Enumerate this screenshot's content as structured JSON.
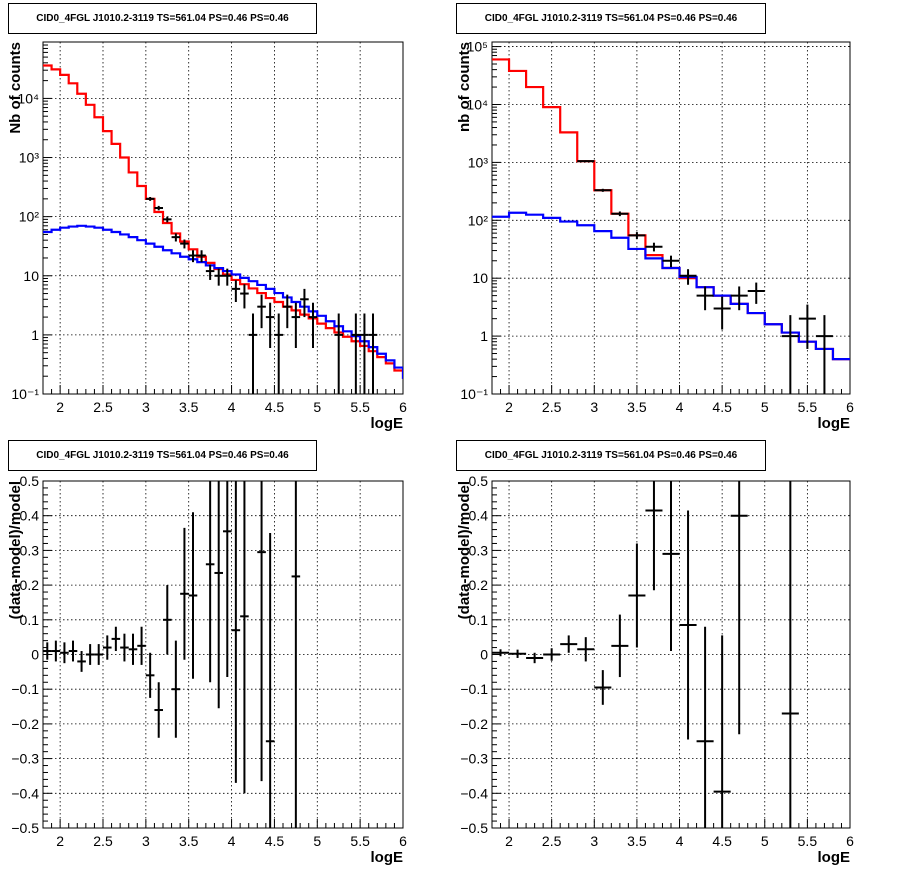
{
  "chart_data": [
    {
      "type": "line",
      "title": "CID0_4FGL J1010.2-3119 TS=561.04 PS=0.46 PS=0.46",
      "xlabel": "logE",
      "ylabel": "Nb of counts",
      "xlim": [
        1.8,
        6.0
      ],
      "ylim": [
        0.1,
        90000
      ],
      "yscale": "log",
      "xticks": [
        2,
        2.5,
        3,
        3.5,
        4,
        4.5,
        5,
        5.5,
        6
      ],
      "xtick_labels": [
        "2",
        "2.5",
        "3",
        "3.5",
        "4",
        "4.5",
        "5",
        "5.5",
        "6"
      ],
      "yticks": [
        0.1,
        1,
        10,
        100,
        1000,
        10000
      ],
      "ytick_labels": [
        "10⁻¹",
        "1",
        "10",
        "10²",
        "10³",
        "10⁴"
      ],
      "grid": true,
      "series": [
        {
          "color": "#ff0000",
          "kind": "step",
          "edges": [
            1.8,
            1.9,
            2.0,
            2.1,
            2.2,
            2.3,
            2.4,
            2.5,
            2.6,
            2.7,
            2.8,
            2.9,
            3.0,
            3.1,
            3.2,
            3.3,
            3.4,
            3.5,
            3.6,
            3.7,
            3.8,
            3.9,
            4.0,
            4.1,
            4.2,
            4.3,
            4.4,
            4.5,
            4.6,
            4.7,
            4.8,
            4.9,
            5.0,
            5.1,
            5.2,
            5.3,
            5.4,
            5.5,
            5.6,
            5.7,
            5.8,
            5.9,
            6.0
          ],
          "values": [
            36000,
            31000,
            25000,
            18000,
            12000,
            7800,
            4800,
            2800,
            1700,
            1000,
            560,
            330,
            200,
            120,
            78,
            52,
            38,
            28,
            21,
            16.5,
            13,
            10.5,
            8.5,
            7.2,
            6.1,
            5.1,
            4.2,
            3.6,
            3.0,
            2.6,
            2.2,
            1.9,
            1.55,
            1.3,
            1.1,
            0.93,
            0.78,
            0.65,
            0.53,
            0.42,
            0.33,
            0.25,
            0.18
          ]
        },
        {
          "color": "#0000ff",
          "kind": "step",
          "edges": [
            1.8,
            1.9,
            2.0,
            2.1,
            2.2,
            2.3,
            2.4,
            2.5,
            2.6,
            2.7,
            2.8,
            2.9,
            3.0,
            3.1,
            3.2,
            3.3,
            3.4,
            3.5,
            3.6,
            3.7,
            3.8,
            3.9,
            4.0,
            4.1,
            4.2,
            4.3,
            4.4,
            4.5,
            4.6,
            4.7,
            4.8,
            4.9,
            5.0,
            5.1,
            5.2,
            5.3,
            5.4,
            5.5,
            5.6,
            5.7,
            5.8,
            5.9,
            6.0
          ],
          "values": [
            55,
            60,
            65,
            68,
            70,
            68,
            65,
            60,
            55,
            50,
            45,
            40,
            35,
            31,
            27,
            24,
            21,
            19,
            17,
            15,
            13.5,
            12,
            10.5,
            9.2,
            8.1,
            7.0,
            6.0,
            5.1,
            4.3,
            3.6,
            3.0,
            2.5,
            2.1,
            1.7,
            1.4,
            1.15,
            0.95,
            0.78,
            0.62,
            0.48,
            0.37,
            0.28,
            0.18
          ]
        }
      ],
      "points": [
        {
          "x": 3.05,
          "y": 200,
          "xerr": 0.05,
          "yerr_lo": 15,
          "yerr_hi": 15
        },
        {
          "x": 3.15,
          "y": 140,
          "xerr": 0.05,
          "yerr_lo": 12,
          "yerr_hi": 12
        },
        {
          "x": 3.25,
          "y": 90,
          "xerr": 0.05,
          "yerr_lo": 10,
          "yerr_hi": 10
        },
        {
          "x": 3.35,
          "y": 45,
          "xerr": 0.05,
          "yerr_lo": 7,
          "yerr_hi": 7
        },
        {
          "x": 3.45,
          "y": 35,
          "xerr": 0.05,
          "yerr_lo": 6,
          "yerr_hi": 6
        },
        {
          "x": 3.55,
          "y": 22,
          "xerr": 0.05,
          "yerr_lo": 5,
          "yerr_hi": 5
        },
        {
          "x": 3.65,
          "y": 22,
          "xerr": 0.05,
          "yerr_lo": 5,
          "yerr_hi": 5
        },
        {
          "x": 3.75,
          "y": 12,
          "xerr": 0.05,
          "yerr_lo": 3.5,
          "yerr_hi": 3.5
        },
        {
          "x": 3.85,
          "y": 10,
          "xerr": 0.05,
          "yerr_lo": 3.2,
          "yerr_hi": 3.2
        },
        {
          "x": 3.95,
          "y": 10,
          "xerr": 0.05,
          "yerr_lo": 3.2,
          "yerr_hi": 3.2
        },
        {
          "x": 4.05,
          "y": 6,
          "xerr": 0.05,
          "yerr_lo": 2.4,
          "yerr_hi": 2.4
        },
        {
          "x": 4.15,
          "y": 5,
          "xerr": 0.05,
          "yerr_lo": 2.2,
          "yerr_hi": 2.2
        },
        {
          "x": 4.25,
          "y": 1,
          "xerr": 0.05,
          "yerr_lo": 0.9,
          "yerr_hi": 1.3
        },
        {
          "x": 4.35,
          "y": 3,
          "xerr": 0.05,
          "yerr_lo": 1.7,
          "yerr_hi": 1.8
        },
        {
          "x": 4.45,
          "y": 2,
          "xerr": 0.05,
          "yerr_lo": 1.4,
          "yerr_hi": 1.5
        },
        {
          "x": 4.55,
          "y": 1,
          "xerr": 0.05,
          "yerr_lo": 0.9,
          "yerr_hi": 1.3
        },
        {
          "x": 4.65,
          "y": 3,
          "xerr": 0.05,
          "yerr_lo": 1.7,
          "yerr_hi": 1.8
        },
        {
          "x": 4.75,
          "y": 2,
          "xerr": 0.05,
          "yerr_lo": 1.4,
          "yerr_hi": 1.5
        },
        {
          "x": 4.85,
          "y": 4,
          "xerr": 0.05,
          "yerr_lo": 2,
          "yerr_hi": 2
        },
        {
          "x": 4.95,
          "y": 2,
          "xerr": 0.05,
          "yerr_lo": 1.4,
          "yerr_hi": 1.5
        },
        {
          "x": 5.25,
          "y": 1,
          "xerr": 0.05,
          "yerr_lo": 0.9,
          "yerr_hi": 1.3
        },
        {
          "x": 5.45,
          "y": 1,
          "xerr": 0.05,
          "yerr_lo": 0.9,
          "yerr_hi": 1.3
        },
        {
          "x": 5.55,
          "y": 1,
          "xerr": 0.05,
          "yerr_lo": 0.9,
          "yerr_hi": 1.3
        },
        {
          "x": 5.65,
          "y": 1,
          "xerr": 0.05,
          "yerr_lo": 0.9,
          "yerr_hi": 1.3
        }
      ]
    },
    {
      "type": "line",
      "title": "CID0_4FGL J1010.2-3119 TS=561.04 PS=0.46 PS=0.46",
      "xlabel": "logE",
      "ylabel": "nb of counts",
      "xlim": [
        1.8,
        6.0
      ],
      "ylim": [
        0.1,
        120000
      ],
      "yscale": "log",
      "xticks": [
        2,
        2.5,
        3,
        3.5,
        4,
        4.5,
        5,
        5.5,
        6
      ],
      "xtick_labels": [
        "2",
        "2.5",
        "3",
        "3.5",
        "4",
        "4.5",
        "5",
        "5.5",
        "6"
      ],
      "yticks": [
        0.1,
        1,
        10,
        100,
        1000,
        10000,
        100000
      ],
      "ytick_labels": [
        "10⁻¹",
        "1",
        "10",
        "10²",
        "10³",
        "10⁴",
        "10⁵"
      ],
      "grid": true,
      "series": [
        {
          "color": "#ff0000",
          "kind": "step",
          "edges": [
            1.8,
            2.0,
            2.2,
            2.4,
            2.6,
            2.8,
            3.0,
            3.2,
            3.4,
            3.6,
            3.8,
            4.0,
            4.2,
            4.4,
            4.6,
            4.8,
            5.0,
            5.2,
            5.4,
            5.6,
            5.8,
            6.0
          ],
          "values": [
            60000,
            38000,
            20000,
            9000,
            3300,
            1050,
            330,
            130,
            55,
            25,
            15,
            10,
            7,
            5,
            3.6,
            2.5,
            1.6,
            1.15,
            0.8,
            0.6,
            0.4
          ]
        },
        {
          "color": "#0000ff",
          "kind": "step",
          "edges": [
            1.8,
            2.0,
            2.2,
            2.4,
            2.6,
            2.8,
            3.0,
            3.2,
            3.4,
            3.6,
            3.8,
            4.0,
            4.2,
            4.4,
            4.6,
            4.8,
            5.0,
            5.2,
            5.4,
            5.6,
            5.8,
            6.0
          ],
          "values": [
            115,
            135,
            125,
            110,
            95,
            82,
            65,
            50,
            32,
            22,
            15,
            10.5,
            7,
            5,
            3.6,
            2.5,
            1.6,
            1.15,
            0.8,
            0.6,
            0.4
          ]
        }
      ],
      "points": [
        {
          "x": 2.9,
          "y": 1050,
          "xerr": 0.1,
          "yerr_lo": 35,
          "yerr_hi": 35
        },
        {
          "x": 3.1,
          "y": 330,
          "xerr": 0.1,
          "yerr_lo": 20,
          "yerr_hi": 20
        },
        {
          "x": 3.3,
          "y": 130,
          "xerr": 0.1,
          "yerr_lo": 12,
          "yerr_hi": 12
        },
        {
          "x": 3.5,
          "y": 55,
          "xerr": 0.1,
          "yerr_lo": 7.5,
          "yerr_hi": 7.5
        },
        {
          "x": 3.7,
          "y": 35,
          "xerr": 0.1,
          "yerr_lo": 6,
          "yerr_hi": 6
        },
        {
          "x": 3.9,
          "y": 20,
          "xerr": 0.1,
          "yerr_lo": 4.5,
          "yerr_hi": 4.5
        },
        {
          "x": 4.1,
          "y": 11,
          "xerr": 0.1,
          "yerr_lo": 3.3,
          "yerr_hi": 3.3
        },
        {
          "x": 4.3,
          "y": 5,
          "xerr": 0.1,
          "yerr_lo": 2.2,
          "yerr_hi": 2.2
        },
        {
          "x": 4.5,
          "y": 3,
          "xerr": 0.1,
          "yerr_lo": 1.7,
          "yerr_hi": 1.8
        },
        {
          "x": 4.7,
          "y": 5,
          "xerr": 0.1,
          "yerr_lo": 2.2,
          "yerr_hi": 2.2
        },
        {
          "x": 4.9,
          "y": 6,
          "xerr": 0.1,
          "yerr_lo": 2.4,
          "yerr_hi": 2.4
        },
        {
          "x": 5.3,
          "y": 1,
          "xerr": 0.1,
          "yerr_lo": 0.9,
          "yerr_hi": 1.3
        },
        {
          "x": 5.5,
          "y": 2,
          "xerr": 0.1,
          "yerr_lo": 1.4,
          "yerr_hi": 1.5
        },
        {
          "x": 5.7,
          "y": 1,
          "xerr": 0.1,
          "yerr_lo": 0.9,
          "yerr_hi": 1.3
        }
      ]
    },
    {
      "type": "scatter",
      "title": "CID0_4FGL J1010.2-3119 TS=561.04 PS=0.46 PS=0.46",
      "xlabel": "logE",
      "ylabel": "(data-model)/model",
      "xlim": [
        1.8,
        6.0
      ],
      "ylim": [
        -0.5,
        0.5
      ],
      "yscale": "linear",
      "xticks": [
        2,
        2.5,
        3,
        3.5,
        4,
        4.5,
        5,
        5.5,
        6
      ],
      "xtick_labels": [
        "2",
        "2.5",
        "3",
        "3.5",
        "4",
        "4.5",
        "5",
        "5.5",
        "6"
      ],
      "yticks": [
        -0.5,
        -0.4,
        -0.3,
        -0.2,
        -0.1,
        0,
        0.1,
        0.2,
        0.3,
        0.4,
        0.5
      ],
      "ytick_labels": [
        "−0.5",
        "−0.4",
        "−0.3",
        "−0.2",
        "−0.1",
        "0",
        "0.1",
        "0.2",
        "0.3",
        "0.4",
        "0.5"
      ],
      "grid": true,
      "points": [
        {
          "x": 1.85,
          "y": 0.01,
          "xerr": 0.05,
          "yerr_lo": 0.025,
          "yerr_hi": 0.025
        },
        {
          "x": 1.95,
          "y": 0.01,
          "xerr": 0.05,
          "yerr_lo": 0.03,
          "yerr_hi": 0.03
        },
        {
          "x": 2.05,
          "y": 0.005,
          "xerr": 0.05,
          "yerr_lo": 0.03,
          "yerr_hi": 0.03
        },
        {
          "x": 2.15,
          "y": 0.01,
          "xerr": 0.05,
          "yerr_lo": 0.03,
          "yerr_hi": 0.03
        },
        {
          "x": 2.25,
          "y": -0.02,
          "xerr": 0.05,
          "yerr_lo": 0.03,
          "yerr_hi": 0.03
        },
        {
          "x": 2.35,
          "y": 0.0,
          "xerr": 0.05,
          "yerr_lo": 0.03,
          "yerr_hi": 0.03
        },
        {
          "x": 2.45,
          "y": 0.0,
          "xerr": 0.05,
          "yerr_lo": 0.03,
          "yerr_hi": 0.03
        },
        {
          "x": 2.55,
          "y": 0.02,
          "xerr": 0.05,
          "yerr_lo": 0.035,
          "yerr_hi": 0.035
        },
        {
          "x": 2.65,
          "y": 0.045,
          "xerr": 0.05,
          "yerr_lo": 0.035,
          "yerr_hi": 0.035
        },
        {
          "x": 2.75,
          "y": 0.02,
          "xerr": 0.05,
          "yerr_lo": 0.04,
          "yerr_hi": 0.04
        },
        {
          "x": 2.85,
          "y": 0.015,
          "xerr": 0.05,
          "yerr_lo": 0.045,
          "yerr_hi": 0.045
        },
        {
          "x": 2.95,
          "y": 0.025,
          "xerr": 0.05,
          "yerr_lo": 0.055,
          "yerr_hi": 0.055
        },
        {
          "x": 3.05,
          "y": -0.06,
          "xerr": 0.05,
          "yerr_lo": 0.065,
          "yerr_hi": 0.065
        },
        {
          "x": 3.15,
          "y": -0.16,
          "xerr": 0.05,
          "yerr_lo": 0.08,
          "yerr_hi": 0.08
        },
        {
          "x": 3.25,
          "y": 0.1,
          "xerr": 0.05,
          "yerr_lo": 0.1,
          "yerr_hi": 0.1
        },
        {
          "x": 3.35,
          "y": -0.1,
          "xerr": 0.05,
          "yerr_lo": 0.14,
          "yerr_hi": 0.14
        },
        {
          "x": 3.45,
          "y": 0.175,
          "xerr": 0.05,
          "yerr_lo": 0.19,
          "yerr_hi": 0.19
        },
        {
          "x": 3.55,
          "y": 0.17,
          "xerr": 0.05,
          "yerr_lo": 0.24,
          "yerr_hi": 0.24
        },
        {
          "x": 3.75,
          "y": 0.26,
          "xerr": 0.05,
          "yerr_lo": 0.34,
          "yerr_hi": 0.34
        },
        {
          "x": 3.85,
          "y": 0.235,
          "xerr": 0.05,
          "yerr_lo": 0.39,
          "yerr_hi": 0.39
        },
        {
          "x": 3.95,
          "y": 0.355,
          "xerr": 0.05,
          "yerr_lo": 0.42,
          "yerr_hi": 0.42
        },
        {
          "x": 4.05,
          "y": 0.07,
          "xerr": 0.05,
          "yerr_lo": 0.44,
          "yerr_hi": 0.44
        },
        {
          "x": 4.15,
          "y": 0.11,
          "xerr": 0.05,
          "yerr_lo": 0.51,
          "yerr_hi": 0.51
        },
        {
          "x": 4.35,
          "y": 0.295,
          "xerr": 0.05,
          "yerr_lo": 0.66,
          "yerr_hi": 0.66
        },
        {
          "x": 4.45,
          "y": -0.25,
          "xerr": 0.05,
          "yerr_lo": 0.6,
          "yerr_hi": 0.6
        },
        {
          "x": 4.75,
          "y": 0.225,
          "xerr": 0.05,
          "yerr_lo": 0.9,
          "yerr_hi": 0.9
        }
      ]
    },
    {
      "type": "scatter",
      "title": "CID0_4FGL J1010.2-3119 TS=561.04 PS=0.46 PS=0.46",
      "xlabel": "logE",
      "ylabel": "(data-model)/model",
      "xlim": [
        1.8,
        6.0
      ],
      "ylim": [
        -0.5,
        0.5
      ],
      "yscale": "linear",
      "xticks": [
        2,
        2.5,
        3,
        3.5,
        4,
        4.5,
        5,
        5.5,
        6
      ],
      "xtick_labels": [
        "2",
        "2.5",
        "3",
        "3.5",
        "4",
        "4.5",
        "5",
        "5.5",
        "6"
      ],
      "yticks": [
        -0.5,
        -0.4,
        -0.3,
        -0.2,
        -0.1,
        0,
        0.1,
        0.2,
        0.3,
        0.4,
        0.5
      ],
      "ytick_labels": [
        "−0.5",
        "−0.4",
        "−0.3",
        "−0.2",
        "−0.1",
        "0",
        "0.1",
        "0.2",
        "0.3",
        "0.4",
        "0.5"
      ],
      "grid": true,
      "points": [
        {
          "x": 1.9,
          "y": 0.005,
          "xerr": 0.1,
          "yerr_lo": 0.01,
          "yerr_hi": 0.01
        },
        {
          "x": 2.1,
          "y": 0.002,
          "xerr": 0.1,
          "yerr_lo": 0.012,
          "yerr_hi": 0.012
        },
        {
          "x": 2.3,
          "y": -0.01,
          "xerr": 0.1,
          "yerr_lo": 0.015,
          "yerr_hi": 0.015
        },
        {
          "x": 2.5,
          "y": 0.0,
          "xerr": 0.1,
          "yerr_lo": 0.018,
          "yerr_hi": 0.018
        },
        {
          "x": 2.7,
          "y": 0.03,
          "xerr": 0.1,
          "yerr_lo": 0.025,
          "yerr_hi": 0.025
        },
        {
          "x": 2.9,
          "y": 0.015,
          "xerr": 0.1,
          "yerr_lo": 0.035,
          "yerr_hi": 0.035
        },
        {
          "x": 3.1,
          "y": -0.095,
          "xerr": 0.1,
          "yerr_lo": 0.05,
          "yerr_hi": 0.05
        },
        {
          "x": 3.3,
          "y": 0.025,
          "xerr": 0.1,
          "yerr_lo": 0.09,
          "yerr_hi": 0.09
        },
        {
          "x": 3.5,
          "y": 0.17,
          "xerr": 0.1,
          "yerr_lo": 0.15,
          "yerr_hi": 0.15
        },
        {
          "x": 3.7,
          "y": 0.415,
          "xerr": 0.1,
          "yerr_lo": 0.23,
          "yerr_hi": 0.23
        },
        {
          "x": 3.9,
          "y": 0.29,
          "xerr": 0.1,
          "yerr_lo": 0.28,
          "yerr_hi": 0.28
        },
        {
          "x": 4.1,
          "y": 0.085,
          "xerr": 0.1,
          "yerr_lo": 0.33,
          "yerr_hi": 0.33
        },
        {
          "x": 4.3,
          "y": -0.25,
          "xerr": 0.1,
          "yerr_lo": 0.33,
          "yerr_hi": 0.33
        },
        {
          "x": 4.5,
          "y": -0.395,
          "xerr": 0.1,
          "yerr_lo": 0.45,
          "yerr_hi": 0.45
        },
        {
          "x": 4.7,
          "y": 0.4,
          "xerr": 0.1,
          "yerr_lo": 0.63,
          "yerr_hi": 0.63
        },
        {
          "x": 5.3,
          "y": -0.17,
          "xerr": 0.1,
          "yerr_lo": 0.9,
          "yerr_hi": 0.9
        }
      ]
    }
  ]
}
